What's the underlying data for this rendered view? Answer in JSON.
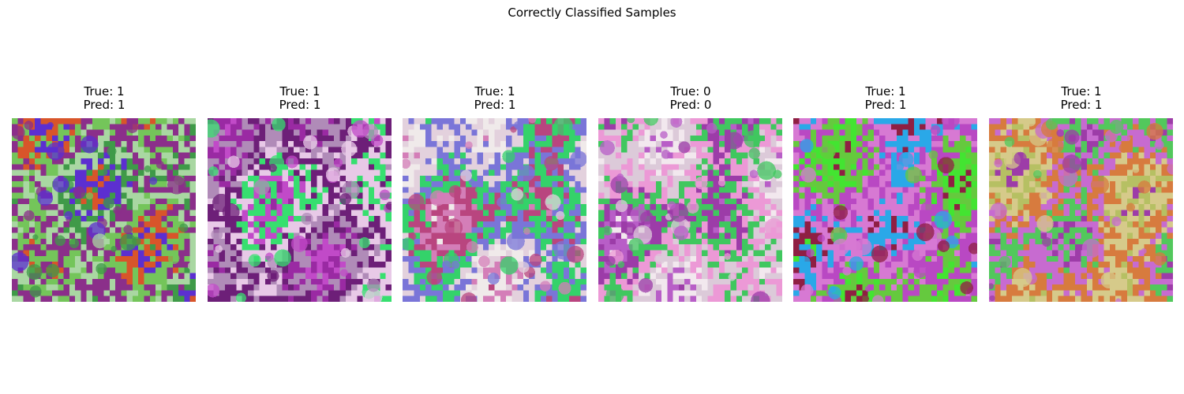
{
  "figure": {
    "title": "Correctly Classified Samples"
  },
  "samples": [
    {
      "true_label": "True: 1",
      "pred_label": "Pred: 1",
      "palette": [
        "#d8552a",
        "#5c2fd0",
        "#3f9a48",
        "#a9d7a2",
        "#8b2f8a",
        "#74c55a"
      ]
    },
    {
      "true_label": "True: 1",
      "pred_label": "Pred: 1",
      "palette": [
        "#9a2aa3",
        "#c14ac8",
        "#37df6f",
        "#e8c9e7",
        "#6d1f78",
        "#b08bb8"
      ]
    },
    {
      "true_label": "True: 1",
      "pred_label": "Pred: 1",
      "palette": [
        "#f0eaea",
        "#d47eb8",
        "#b9457f",
        "#34d26a",
        "#7a75d8",
        "#e3d1dd"
      ]
    },
    {
      "true_label": "True: 0",
      "pred_label": "Pred: 0",
      "palette": [
        "#f2e8ee",
        "#b85ec7",
        "#9c3ca8",
        "#40c75f",
        "#ec99d6",
        "#dccad9"
      ]
    },
    {
      "true_label": "True: 1",
      "pred_label": "Pred: 1",
      "palette": [
        "#43e431",
        "#8f1f43",
        "#2aa8e8",
        "#d779d3",
        "#b948c3",
        "#65c93e"
      ]
    },
    {
      "true_label": "True: 1",
      "pred_label": "Pred: 1",
      "palette": [
        "#b6c063",
        "#9d3ca8",
        "#52c85c",
        "#c76bd0",
        "#d77b3e",
        "#d6ca8a"
      ]
    }
  ]
}
